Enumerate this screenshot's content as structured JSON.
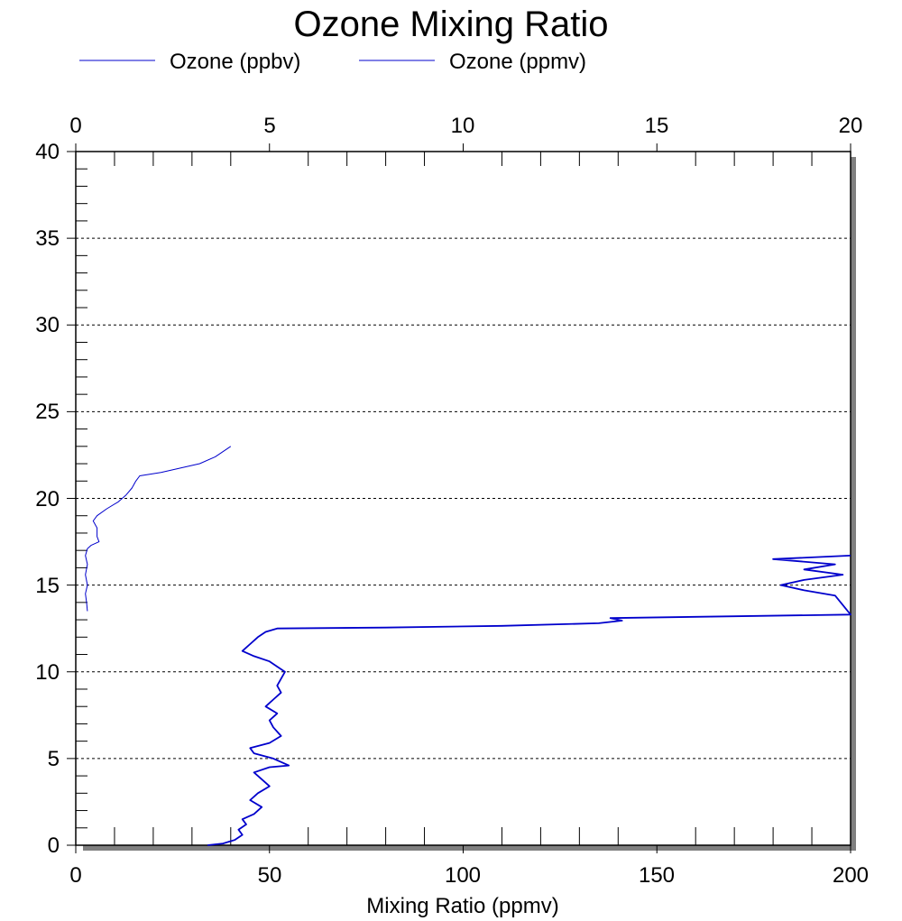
{
  "chart_data": {
    "type": "line",
    "title": "Ozone Mixing Ratio",
    "xlabel": "Mixing Ratio (ppmv)",
    "ylabel": "",
    "top_axis": {
      "range": [
        0,
        20
      ],
      "ticks": [
        "0",
        "5",
        "10",
        "15",
        "20"
      ]
    },
    "bottom_axis": {
      "range": [
        0,
        200
      ],
      "ticks": [
        "0",
        "50",
        "100",
        "150",
        "200"
      ]
    },
    "y_axis": {
      "range": [
        0,
        40
      ],
      "ticks": [
        "0",
        "5",
        "10",
        "15",
        "20",
        "25",
        "30",
        "35",
        "40"
      ]
    },
    "grid": "horizontal dotted",
    "legend_placement": "top",
    "colors": {
      "series": "#0000cc",
      "shadow": "#808080",
      "grid": "#000000"
    },
    "series": [
      {
        "name": "Ozone (ppbv)",
        "axis": "bottom",
        "points": [
          [
            34,
            0.0
          ],
          [
            38,
            0.1
          ],
          [
            41,
            0.3
          ],
          [
            43,
            0.6
          ],
          [
            42,
            0.9
          ],
          [
            44,
            1.2
          ],
          [
            43,
            1.5
          ],
          [
            46,
            1.8
          ],
          [
            48,
            2.2
          ],
          [
            45,
            2.6
          ],
          [
            47,
            3.0
          ],
          [
            50,
            3.4
          ],
          [
            48,
            3.8
          ],
          [
            46,
            4.2
          ],
          [
            50,
            4.5
          ],
          [
            55,
            4.6
          ],
          [
            51,
            5.0
          ],
          [
            46,
            5.3
          ],
          [
            45,
            5.6
          ],
          [
            50,
            5.9
          ],
          [
            53,
            6.3
          ],
          [
            51,
            6.8
          ],
          [
            50,
            7.2
          ],
          [
            52,
            7.6
          ],
          [
            49,
            8.0
          ],
          [
            51,
            8.4
          ],
          [
            53,
            8.8
          ],
          [
            52,
            9.2
          ],
          [
            53,
            9.6
          ],
          [
            54,
            10.0
          ],
          [
            52,
            10.3
          ],
          [
            50,
            10.6
          ],
          [
            46,
            10.9
          ],
          [
            43,
            11.2
          ],
          [
            45,
            11.6
          ],
          [
            47,
            12.0
          ],
          [
            49,
            12.3
          ],
          [
            52,
            12.5
          ],
          [
            80,
            12.55
          ],
          [
            110,
            12.65
          ],
          [
            135,
            12.8
          ],
          [
            141,
            12.95
          ],
          [
            138,
            13.1
          ],
          [
            170,
            13.2
          ],
          [
            200,
            13.3
          ],
          [
            196,
            14.4
          ],
          [
            188,
            14.7
          ],
          [
            182,
            15.0
          ],
          [
            188,
            15.3
          ],
          [
            198,
            15.6
          ],
          [
            188,
            15.9
          ],
          [
            196,
            16.2
          ],
          [
            180,
            16.5
          ],
          [
            200,
            16.7
          ]
        ]
      },
      {
        "name": "Ozone (ppmv)",
        "axis": "top",
        "points": [
          [
            0.3,
            13.5
          ],
          [
            0.28,
            14.0
          ],
          [
            0.25,
            14.5
          ],
          [
            0.3,
            15.0
          ],
          [
            0.25,
            15.6
          ],
          [
            0.3,
            16.2
          ],
          [
            0.25,
            16.7
          ],
          [
            0.3,
            17.1
          ],
          [
            0.4,
            17.3
          ],
          [
            0.6,
            17.5
          ],
          [
            0.55,
            17.8
          ],
          [
            0.55,
            18.3
          ],
          [
            0.45,
            18.7
          ],
          [
            0.55,
            19.0
          ],
          [
            0.8,
            19.4
          ],
          [
            1.1,
            19.8
          ],
          [
            1.3,
            20.2
          ],
          [
            1.45,
            20.6
          ],
          [
            1.55,
            21.0
          ],
          [
            1.65,
            21.3
          ],
          [
            2.2,
            21.5
          ],
          [
            3.2,
            22.0
          ],
          [
            3.6,
            22.4
          ],
          [
            4.0,
            23.0
          ]
        ]
      }
    ]
  }
}
